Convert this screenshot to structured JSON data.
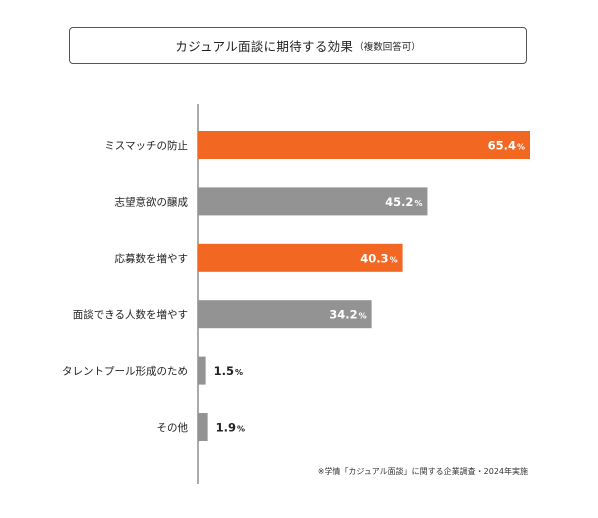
{
  "title": {
    "main": "カジュアル面談に期待する効果",
    "sub": "（複数回答可）"
  },
  "footnote": "※学情「カジュアル面談」に関する企業調査・2024年実施",
  "colors": {
    "highlight": "#f26722",
    "default": "#939393",
    "axis": "#555555"
  },
  "chart_data": {
    "type": "bar",
    "orientation": "horizontal",
    "title": "カジュアル面談に期待する効果（複数回答可）",
    "unit": "%",
    "categories": [
      "ミスマッチの防止",
      "志望意欲の醸成",
      "応募数を増やす",
      "面談できる人数を増やす",
      "タレントプール形成のため",
      "その他"
    ],
    "values": [
      65.4,
      45.2,
      40.3,
      34.2,
      1.5,
      1.9
    ],
    "highlighted": [
      true,
      false,
      true,
      false,
      false,
      false
    ],
    "xlim": [
      0,
      65.4
    ],
    "grid": false,
    "legend": "none"
  }
}
